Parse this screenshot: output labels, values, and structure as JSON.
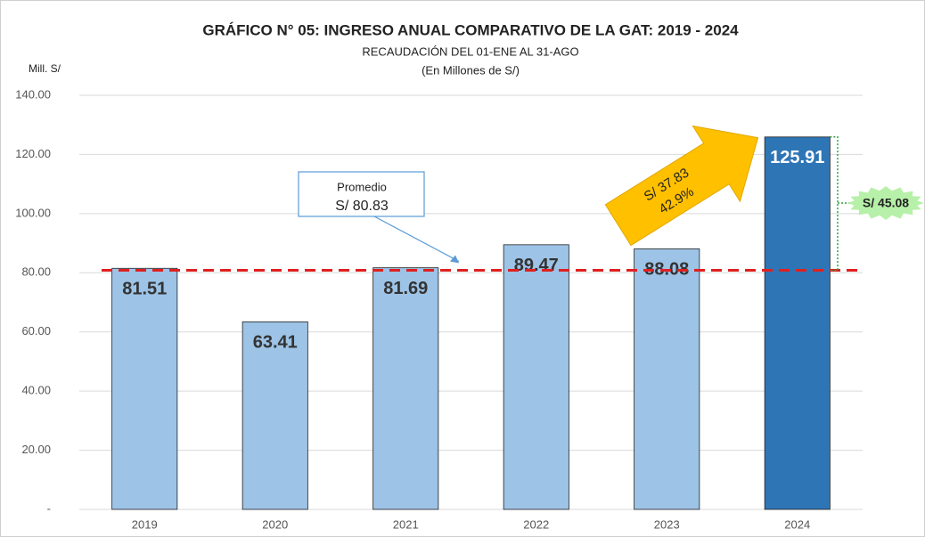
{
  "chart_data": {
    "type": "bar",
    "title": "GRÁFICO N° 05: INGRESO ANUAL COMPARATIVO DE LA GAT: 2019 - 2024",
    "subtitle": [
      "RECAUDACIÓN DEL 01-ENE AL 31-AGO",
      "(En Millones de S/)"
    ],
    "y_axis_label": "Mill. S/",
    "categories": [
      "2019",
      "2020",
      "2021",
      "2022",
      "2023",
      "2024"
    ],
    "values": [
      81.51,
      63.41,
      81.69,
      89.47,
      88.08,
      125.91
    ],
    "colors": [
      "#9dc3e6",
      "#9dc3e6",
      "#9dc3e6",
      "#9dc3e6",
      "#9dc3e6",
      "#2e75b6"
    ],
    "ylim": [
      0,
      140
    ],
    "yticks": [
      {
        "value": 0,
        "label": "-"
      },
      {
        "value": 20,
        "label": "20.00"
      },
      {
        "value": 40,
        "label": "40.00"
      },
      {
        "value": 60,
        "label": "60.00"
      },
      {
        "value": 80,
        "label": "80.00"
      },
      {
        "value": 100,
        "label": "100.00"
      },
      {
        "value": 120,
        "label": "120.00"
      },
      {
        "value": 140,
        "label": "140.00"
      }
    ],
    "grid": true,
    "average": {
      "label": "Promedio",
      "value": 80.83,
      "value_label": "S/ 80.83",
      "color": "#e02020"
    },
    "growth_annotation": [
      "S/ 37.83",
      "42.9%"
    ],
    "difference_annotation": "S/ 45.08"
  }
}
